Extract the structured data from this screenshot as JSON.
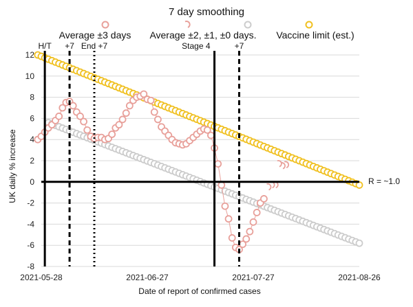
{
  "chart_data": {
    "type": "scatter",
    "title": "7 day smoothing",
    "xlabel": "Date of report of confirmed cases",
    "ylabel": "UK daily % increase",
    "ylim": [
      -8,
      12
    ],
    "yticks": [
      -8,
      -6,
      -4,
      -2,
      0,
      2,
      4,
      6,
      8,
      10,
      12
    ],
    "xlim": [
      "2021-05-28",
      "2021-08-26"
    ],
    "xticks": [
      "2021-05-28",
      "2021-06-27",
      "2021-07-27",
      "2021-08-26"
    ],
    "grid": "horizontal",
    "legend_position": "top",
    "series": [
      {
        "name": "Average ±3 days",
        "color": "#e8a09a",
        "style": "markers-line",
        "points": [
          [
            "2021-05-27",
            4.0
          ],
          [
            "2021-05-28",
            4.3
          ],
          [
            "2021-05-29",
            4.7
          ],
          [
            "2021-05-30",
            5.1
          ],
          [
            "2021-05-31",
            5.4
          ],
          [
            "2021-06-01",
            5.8
          ],
          [
            "2021-06-02",
            6.2
          ],
          [
            "2021-06-03",
            7.0
          ],
          [
            "2021-06-04",
            7.5
          ],
          [
            "2021-06-05",
            7.6
          ],
          [
            "2021-06-06",
            7.2
          ],
          [
            "2021-06-07",
            6.6
          ],
          [
            "2021-06-08",
            6.2
          ],
          [
            "2021-06-09",
            5.7
          ],
          [
            "2021-06-10",
            4.9
          ],
          [
            "2021-06-11",
            4.3
          ],
          [
            "2021-06-12",
            4.1
          ],
          [
            "2021-06-13",
            4.2
          ],
          [
            "2021-06-14",
            4.2
          ],
          [
            "2021-06-15",
            4.0
          ],
          [
            "2021-06-16",
            4.1
          ],
          [
            "2021-06-17",
            4.5
          ],
          [
            "2021-06-18",
            5.1
          ],
          [
            "2021-06-19",
            5.4
          ],
          [
            "2021-06-20",
            5.9
          ],
          [
            "2021-06-21",
            6.5
          ],
          [
            "2021-06-22",
            7.2
          ],
          [
            "2021-06-23",
            7.7
          ],
          [
            "2021-06-24",
            8.0
          ],
          [
            "2021-06-25",
            8.1
          ],
          [
            "2021-06-26",
            8.3
          ],
          [
            "2021-06-27",
            7.8
          ],
          [
            "2021-06-28",
            7.7
          ],
          [
            "2021-06-29",
            6.6
          ],
          [
            "2021-06-30",
            5.9
          ],
          [
            "2021-07-01",
            5.2
          ],
          [
            "2021-07-02",
            4.8
          ],
          [
            "2021-07-03",
            4.4
          ],
          [
            "2021-07-04",
            4.0
          ],
          [
            "2021-07-05",
            3.7
          ],
          [
            "2021-07-06",
            3.6
          ],
          [
            "2021-07-07",
            3.5
          ],
          [
            "2021-07-08",
            3.6
          ],
          [
            "2021-07-09",
            3.9
          ],
          [
            "2021-07-10",
            4.2
          ],
          [
            "2021-07-11",
            4.5
          ],
          [
            "2021-07-12",
            4.8
          ],
          [
            "2021-07-13",
            5.0
          ],
          [
            "2021-07-14",
            4.9
          ],
          [
            "2021-07-15",
            4.4
          ],
          [
            "2021-07-16",
            3.2
          ],
          [
            "2021-07-17",
            1.7
          ],
          [
            "2021-07-18",
            -0.3
          ],
          [
            "2021-07-19",
            -2.3
          ],
          [
            "2021-07-20",
            -3.5
          ],
          [
            "2021-07-21",
            -5.3
          ],
          [
            "2021-07-22",
            -6.2
          ],
          [
            "2021-07-23",
            -6.4
          ],
          [
            "2021-07-24",
            -5.9
          ],
          [
            "2021-07-25",
            -5.4
          ],
          [
            "2021-07-26",
            -4.7
          ],
          [
            "2021-07-27",
            -3.8
          ],
          [
            "2021-07-28",
            -2.9
          ],
          [
            "2021-07-29",
            -2.0
          ],
          [
            "2021-07-30",
            -1.6
          ]
        ]
      },
      {
        "name": "Average ±2, ±1, ±0 days.",
        "color": "#e8a09a",
        "style": "dashed-arcs",
        "points": [
          [
            "2021-07-31",
            -0.5
          ],
          [
            "2021-08-01",
            -0.3
          ],
          [
            "2021-08-02",
            -0.3
          ],
          [
            "2021-08-03",
            1.7
          ],
          [
            "2021-08-04",
            1.5
          ],
          [
            "2021-08-05",
            1.6
          ]
        ]
      },
      {
        "name": "",
        "color": "#cccccc",
        "style": "markers",
        "points": [
          [
            "2021-05-30",
            5.6
          ],
          [
            "2021-08-26",
            -5.8
          ]
        ],
        "note": "linear"
      },
      {
        "name": "Vaccine limit (est.)",
        "color": "#f0c020",
        "style": "markers",
        "points": [
          [
            "2021-05-27",
            12.0
          ],
          [
            "2021-08-26",
            -0.3
          ]
        ],
        "note": "linear"
      }
    ],
    "reference_lines": [
      {
        "date": "2021-05-29",
        "label": "H/T",
        "style": "solid"
      },
      {
        "date": "2021-06-05",
        "label": "+7",
        "style": "dashed"
      },
      {
        "date": "2021-06-12",
        "label": "End +7",
        "style": "dotted"
      },
      {
        "date": "2021-07-16",
        "label": "Stage 4",
        "style": "solid"
      },
      {
        "date": "2021-07-23",
        "label": "+7",
        "style": "dashed"
      }
    ],
    "annotations": [
      {
        "label": "R = ~1.0",
        "y": 0
      }
    ]
  }
}
